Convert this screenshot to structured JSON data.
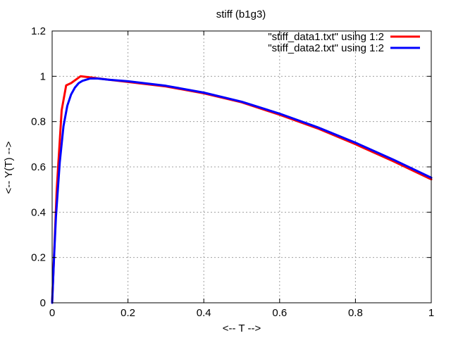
{
  "chart_data": {
    "type": "line",
    "title": "stiff (b1g3)",
    "xlabel": "<-- T -->",
    "ylabel": "<-- Y(T) -->",
    "xlim": [
      0,
      1
    ],
    "ylim": [
      0,
      1.2
    ],
    "xticks": [
      0,
      0.2,
      0.4,
      0.6,
      0.8,
      1
    ],
    "xtick_labels": [
      "0",
      "0.2",
      "0.4",
      "0.6",
      "0.8",
      "1"
    ],
    "yticks": [
      0,
      0.2,
      0.4,
      0.6,
      0.8,
      1,
      1.2
    ],
    "ytick_labels": [
      "0",
      "0.2",
      "0.4",
      "0.6",
      "0.8",
      "1",
      "1.2"
    ],
    "grid": true,
    "legend_position": "top-right",
    "series": [
      {
        "name": "\"stiff_data1.txt\" using 1:2",
        "color": "#ff0000",
        "x": [
          0,
          0.012,
          0.025,
          0.037,
          0.05,
          0.075,
          0.1,
          0.15,
          0.2,
          0.3,
          0.4,
          0.5,
          0.6,
          0.7,
          0.8,
          0.9,
          1.0
        ],
        "y": [
          0,
          0.5,
          0.85,
          0.96,
          0.97,
          1.0,
          0.995,
          0.985,
          0.975,
          0.955,
          0.925,
          0.885,
          0.83,
          0.77,
          0.7,
          0.625,
          0.545
        ]
      },
      {
        "name": "\"stiff_data2.txt\" using 1:2",
        "color": "#0000ff",
        "x": [
          0,
          0.005,
          0.01,
          0.02,
          0.03,
          0.04,
          0.05,
          0.06,
          0.07,
          0.08,
          0.09,
          0.1,
          0.12,
          0.15,
          0.2,
          0.3,
          0.4,
          0.5,
          0.6,
          0.7,
          0.8,
          0.9,
          1.0
        ],
        "y": [
          0,
          0.2,
          0.38,
          0.62,
          0.78,
          0.87,
          0.92,
          0.95,
          0.97,
          0.98,
          0.985,
          0.99,
          0.99,
          0.985,
          0.978,
          0.958,
          0.928,
          0.888,
          0.835,
          0.775,
          0.707,
          0.632,
          0.552
        ]
      }
    ]
  }
}
